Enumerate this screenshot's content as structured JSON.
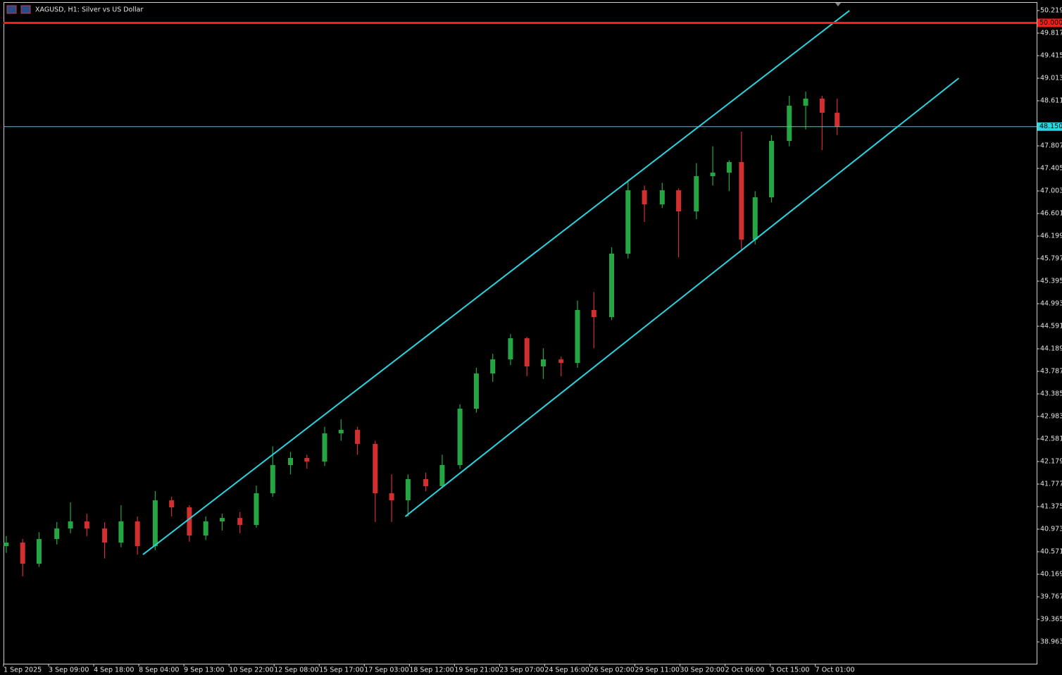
{
  "chart_data": {
    "type": "candlestick",
    "title": "XAGUSD, H1:  Silver vs US Dollar",
    "up_color": "#26a641",
    "down_color": "#d32f2f",
    "x": [
      2,
      14,
      26,
      39,
      49,
      61,
      74,
      86,
      98,
      111,
      123,
      136,
      148,
      160,
      173,
      185,
      197,
      210,
      222,
      235,
      247,
      259,
      272,
      284,
      296,
      309,
      321,
      334,
      346,
      358,
      371,
      383,
      395,
      408,
      420,
      432,
      445,
      457,
      469,
      482,
      494,
      507,
      519,
      531,
      540,
      550,
      562,
      575,
      587,
      599,
      610
    ],
    "open": [
      40.671,
      40.734,
      40.357,
      40.797,
      40.985,
      41.111,
      40.985,
      40.734,
      41.111,
      40.671,
      41.488,
      41.362,
      40.86,
      41.111,
      41.173,
      41.048,
      41.613,
      42.116,
      42.242,
      42.179,
      42.681,
      42.744,
      42.493,
      41.613,
      41.488,
      41.865,
      41.739,
      42.116,
      43.121,
      43.749,
      44.0,
      44.377,
      43.875,
      44.0,
      43.937,
      44.88,
      44.754,
      45.885,
      47.015,
      46.764,
      47.015,
      46.639,
      47.267,
      47.33,
      47.518,
      46.136,
      46.89,
      47.895,
      48.523,
      48.649,
      48.397
    ],
    "high": [
      40.85,
      40.8,
      40.92,
      41.1,
      41.45,
      41.25,
      41.1,
      41.4,
      41.2,
      41.651,
      41.55,
      41.4,
      41.2,
      41.25,
      41.28,
      41.75,
      42.45,
      42.35,
      42.3,
      42.8,
      42.932,
      42.8,
      42.55,
      41.95,
      41.95,
      41.98,
      42.3,
      43.2,
      43.85,
      44.1,
      44.45,
      44.4,
      44.2,
      44.05,
      45.05,
      45.2,
      46.0,
      47.2,
      47.1,
      47.15,
      47.05,
      47.5,
      47.8,
      47.55,
      48.058,
      47.0,
      48.0,
      48.7,
      48.774,
      48.7,
      48.65
    ],
    "low": [
      40.55,
      40.131,
      40.3,
      40.7,
      40.9,
      40.85,
      40.45,
      40.65,
      40.52,
      40.6,
      41.2,
      40.75,
      40.78,
      40.95,
      40.9,
      41.0,
      41.55,
      41.95,
      42.05,
      42.1,
      42.55,
      42.3,
      41.1,
      41.1,
      41.199,
      41.65,
      41.7,
      42.05,
      43.05,
      43.6,
      43.9,
      43.7,
      43.65,
      43.7,
      43.85,
      44.2,
      44.7,
      45.8,
      46.45,
      46.7,
      45.822,
      46.5,
      47.1,
      47.0,
      45.948,
      46.05,
      46.8,
      47.8,
      48.1,
      47.732,
      48.0
    ],
    "close": [
      40.734,
      40.357,
      40.797,
      40.985,
      41.111,
      40.985,
      40.734,
      41.111,
      40.671,
      41.488,
      41.362,
      40.86,
      41.111,
      41.173,
      41.048,
      41.613,
      42.116,
      42.242,
      42.179,
      42.681,
      42.744,
      42.493,
      41.613,
      41.488,
      41.865,
      41.739,
      42.116,
      43.121,
      43.749,
      44.0,
      44.377,
      43.875,
      44.0,
      43.937,
      44.88,
      44.754,
      45.885,
      47.015,
      46.764,
      47.015,
      46.639,
      47.267,
      47.33,
      47.518,
      46.136,
      46.89,
      47.895,
      48.523,
      48.649,
      48.397,
      48.146
    ],
    "xlim": [
      0,
      756
    ],
    "xticks": [
      {
        "value": 0,
        "label": "1 Sep 2025"
      },
      {
        "value": 33,
        "label": "3 Sep 09:00"
      },
      {
        "value": 66,
        "label": "4 Sep 18:00"
      },
      {
        "value": 99,
        "label": "8 Sep 04:00"
      },
      {
        "value": 132,
        "label": "9 Sep 13:00"
      },
      {
        "value": 165,
        "label": "10 Sep 22:00"
      },
      {
        "value": 198,
        "label": "12 Sep 08:00"
      },
      {
        "value": 231,
        "label": "15 Sep 17:00"
      },
      {
        "value": 264,
        "label": "17 Sep 03:00"
      },
      {
        "value": 297,
        "label": "18 Sep 12:00"
      },
      {
        "value": 330,
        "label": "19 Sep 21:00"
      },
      {
        "value": 363,
        "label": "23 Sep 07:00"
      },
      {
        "value": 396,
        "label": "24 Sep 16:00"
      },
      {
        "value": 429,
        "label": "26 Sep 02:00"
      },
      {
        "value": 462,
        "label": "29 Sep 11:00"
      },
      {
        "value": 495,
        "label": "30 Sep 20:00"
      },
      {
        "value": 528,
        "label": "2 Oct 06:00"
      },
      {
        "value": 561,
        "label": "3 Oct 15:00"
      },
      {
        "value": 594,
        "label": "7 Oct 01:00"
      }
    ],
    "ylim": [
      38.574,
      50.37
    ],
    "yticks": [
      50.219,
      49.817,
      49.415,
      49.013,
      48.611,
      47.807,
      47.405,
      47.003,
      46.601,
      46.199,
      45.797,
      45.395,
      44.993,
      44.591,
      44.189,
      43.787,
      43.385,
      42.983,
      42.581,
      42.179,
      41.777,
      41.375,
      40.973,
      40.571,
      40.169,
      39.767,
      39.365,
      38.963
    ],
    "hlines": [
      {
        "value": 50.0,
        "label": "50.000",
        "color": "#ff1a1a"
      },
      {
        "value": 48.15,
        "label": "48.150",
        "color": "#2ad4e0"
      }
    ],
    "trendlines": [
      {
        "x": [
          102,
          619
        ],
        "y": [
          40.52,
          50.219
        ],
        "color": "#2ad4e0"
      },
      {
        "x": [
          294,
          699
        ],
        "y": [
          41.199,
          49.013
        ],
        "color": "#2ad4e0"
      }
    ]
  }
}
